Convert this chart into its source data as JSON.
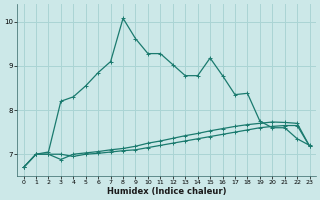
{
  "xlabel": "Humidex (Indice chaleur)",
  "bg_color": "#cce8e8",
  "grid_color": "#aad4d4",
  "line_color": "#1a7a6e",
  "xlim": [
    -0.5,
    23.5
  ],
  "ylim": [
    6.5,
    10.4
  ],
  "x_ticks": [
    0,
    1,
    2,
    3,
    4,
    5,
    6,
    7,
    8,
    9,
    10,
    11,
    12,
    13,
    14,
    15,
    16,
    17,
    18,
    19,
    20,
    21,
    22,
    23
  ],
  "y_ticks": [
    7,
    8,
    9,
    10
  ],
  "series3_x": [
    0,
    1,
    2,
    3,
    4,
    5,
    6,
    7,
    8,
    9,
    10,
    11,
    12,
    13,
    14,
    15,
    16,
    17,
    18,
    19,
    20,
    21,
    22,
    23
  ],
  "series3_y": [
    6.7,
    7.0,
    7.05,
    8.2,
    8.3,
    8.55,
    8.85,
    9.1,
    10.08,
    9.62,
    9.28,
    9.28,
    9.03,
    8.78,
    8.78,
    9.18,
    8.78,
    8.35,
    8.38,
    7.75,
    7.6,
    7.6,
    7.35,
    7.2
  ],
  "series1_x": [
    0,
    1,
    2,
    3,
    4,
    5,
    6,
    7,
    8,
    9,
    10,
    11,
    12,
    13,
    14,
    15,
    16,
    17,
    18,
    19,
    20,
    21,
    22,
    23
  ],
  "series1_y": [
    6.7,
    7.0,
    7.0,
    7.0,
    6.95,
    7.0,
    7.02,
    7.05,
    7.08,
    7.1,
    7.15,
    7.2,
    7.25,
    7.3,
    7.35,
    7.4,
    7.45,
    7.5,
    7.55,
    7.6,
    7.63,
    7.65,
    7.65,
    7.18
  ],
  "series2_x": [
    0,
    1,
    2,
    3,
    4,
    5,
    6,
    7,
    8,
    9,
    10,
    11,
    12,
    13,
    14,
    15,
    16,
    17,
    18,
    19,
    20,
    21,
    22,
    23
  ],
  "series2_y": [
    6.7,
    7.0,
    7.0,
    6.88,
    7.0,
    7.03,
    7.06,
    7.1,
    7.13,
    7.18,
    7.25,
    7.3,
    7.36,
    7.42,
    7.47,
    7.53,
    7.58,
    7.63,
    7.67,
    7.7,
    7.73,
    7.72,
    7.7,
    7.18
  ]
}
